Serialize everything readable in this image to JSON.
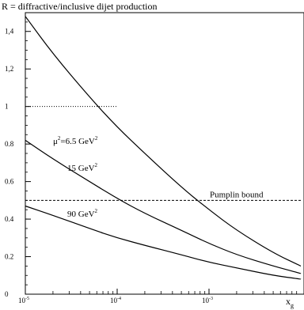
{
  "chart_data": {
    "type": "line",
    "title": "R = diffractive/inclusive  dijet production",
    "xlabel": "x",
    "xlabel_sub": "g",
    "ylabel": "",
    "x_scale": "log",
    "xlim": [
      1e-05,
      0.01
    ],
    "ylim": [
      0,
      1.5
    ],
    "x_ticks": [
      {
        "value": 1e-05,
        "base": "10",
        "exp": "-5"
      },
      {
        "value": 0.0001,
        "base": "10",
        "exp": "-4"
      },
      {
        "value": 0.001,
        "base": "10",
        "exp": "-3"
      }
    ],
    "y_ticks": [
      "0",
      "0.2",
      "0.4",
      "0.6",
      "0.8",
      "1",
      "1,2",
      "1,4"
    ],
    "series": [
      {
        "name": "μ²=6.5 GeV²",
        "label_parts": {
          "pre": "μ",
          "sup1": "2",
          "mid": "=6.5 GeV",
          "sup2": "2"
        },
        "x": [
          1e-05,
          2e-05,
          5e-05,
          0.0001,
          0.0002,
          0.0005,
          0.001,
          0.002,
          0.005,
          0.01
        ],
        "y": [
          1.48,
          1.28,
          1.05,
          0.89,
          0.75,
          0.57,
          0.45,
          0.34,
          0.22,
          0.15
        ]
      },
      {
        "name": "15 GeV²",
        "label_parts": {
          "pre": "15 GeV",
          "sup1": "2"
        },
        "x": [
          1e-05,
          2e-05,
          5e-05,
          0.0001,
          0.0002,
          0.0005,
          0.001,
          0.002,
          0.005,
          0.01
        ],
        "y": [
          0.82,
          0.72,
          0.6,
          0.51,
          0.43,
          0.34,
          0.27,
          0.21,
          0.15,
          0.11
        ]
      },
      {
        "name": "90 GeV²",
        "label_parts": {
          "pre": "90 GeV",
          "sup1": "2"
        },
        "x": [
          1e-05,
          2e-05,
          5e-05,
          0.0001,
          0.0002,
          0.0005,
          0.001,
          0.002,
          0.005,
          0.01
        ],
        "y": [
          0.47,
          0.42,
          0.35,
          0.3,
          0.26,
          0.21,
          0.17,
          0.14,
          0.1,
          0.08
        ]
      }
    ],
    "reference_lines": [
      {
        "name": "",
        "y": 1.0,
        "x_range": [
          1e-05,
          0.0001
        ],
        "style": "dotted"
      },
      {
        "name": "Pumplin bound",
        "y": 0.5,
        "x_range": [
          1e-05,
          0.01
        ],
        "style": "dashed"
      }
    ],
    "grid": false,
    "legend": "inline labels"
  }
}
